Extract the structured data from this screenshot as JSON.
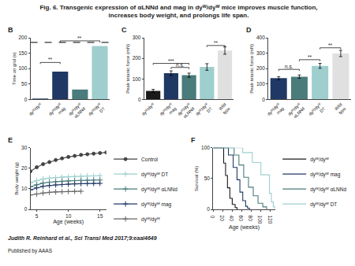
{
  "title": "Fig. 6. Transgenic expression of αLNNd and mag in dyᵂ/dyᵂ mice improves muscle function,\nincreases body weight, and prolongs life span.",
  "annotations": [
    "Judith R. Reinhard et al., Sci Transl Med 2017;9:eaal4649",
    "Published by AAAS"
  ],
  "chart_data": [
    {
      "type": "bar",
      "panel": "B",
      "categories": [
        "dyᵂ/dyᵂ",
        "dyᵂ/dyᵂ\nmag",
        "dyᵂ/dyᵂ\nαLNNd",
        "dyᵂ/dyᵂ\nDT"
      ],
      "values": [
        3,
        90,
        32,
        173
      ],
      "colors": [
        "#203864",
        "#203864",
        "#4a7c7c",
        "#9ecece"
      ],
      "ylabel": "Time on grid (s)",
      "ylim": [
        0,
        200
      ],
      "yticks": [
        0,
        50,
        100,
        150,
        200
      ],
      "grid": false,
      "reference_line": 185,
      "brackets": [
        {
          "x1": 0,
          "x2": 1,
          "y": 115,
          "label": "**"
        },
        {
          "x1": 1,
          "x2": 3,
          "y": 185,
          "label": "**"
        }
      ]
    },
    {
      "type": "bar",
      "panel": "C",
      "categories": [
        "dyᵂ/dyᵂ",
        "dyᵂ/dyᵂ\nmag",
        "dyᵂ/dyᵂ\nαLNNd",
        "dyᵂ/dyᵂ\nDT",
        "Wild\ntype"
      ],
      "values": [
        42,
        128,
        118,
        158,
        238
      ],
      "errors": [
        7,
        11,
        10,
        16,
        18
      ],
      "colors": [
        "#1a1a1a",
        "#203864",
        "#4a7c7c",
        "#9ecece",
        "#e0e0e0"
      ],
      "ylabel": "Peak tetanic force (mN)",
      "ylim": [
        0,
        300
      ],
      "yticks": [
        0,
        100,
        200,
        300
      ],
      "grid": false,
      "brackets": [
        {
          "x1": 0,
          "x2": 2,
          "y": 168,
          "label": "***"
        },
        {
          "x1": 1,
          "x2": 2,
          "y": 148,
          "label": "n.s."
        },
        {
          "x1": 3,
          "x2": 4,
          "y": 255,
          "label": "**"
        }
      ]
    },
    {
      "type": "bar",
      "panel": "D",
      "categories": [
        "dyᵂ/dyᵂ\nmag",
        "dyᵂ/dyᵂ\nαLNNd",
        "dyᵂ/dyᵂ\nDT",
        "Wild\ntype"
      ],
      "values": [
        138,
        148,
        218,
        298
      ],
      "errors": [
        10,
        11,
        16,
        20
      ],
      "colors": [
        "#203864",
        "#4a7c7c",
        "#9ecece",
        "#e0e0e0"
      ],
      "ylabel": "Peak tetanic force (mN)",
      "ylim": [
        0,
        400
      ],
      "yticks": [
        0,
        100,
        200,
        300,
        400
      ],
      "grid": false,
      "brackets": [
        {
          "x1": 0,
          "x2": 1,
          "y": 185,
          "label": "n.s."
        },
        {
          "x1": 1,
          "x2": 2,
          "y": 248,
          "label": "**"
        },
        {
          "x1": 2,
          "x2": 3,
          "y": 325,
          "label": "**"
        }
      ]
    },
    {
      "type": "line",
      "panel": "E",
      "xlabel": "Age (weeks)",
      "ylabel": "Body weight (g)",
      "xlim": [
        4,
        16
      ],
      "ylim": [
        0,
        30
      ],
      "xticks": [
        5,
        10,
        15
      ],
      "yticks": [
        0,
        10,
        20,
        30
      ],
      "grid": false,
      "legend": "right",
      "series": [
        {
          "name": "Control",
          "color": "#444444",
          "marker": "circle",
          "line_style": "solid",
          "x": [
            4,
            5,
            6,
            7,
            8,
            9,
            10,
            11,
            12,
            13,
            14,
            15,
            16
          ],
          "values": [
            18.5,
            20.5,
            22,
            23,
            24,
            24.8,
            25.5,
            26,
            26.5,
            26.8,
            27.1,
            27.4,
            27.7
          ]
        },
        {
          "name": "dyᵂ/dyᵂ DT",
          "color": "#9ecece",
          "marker": "plus",
          "line_style": "solid",
          "x": [
            4,
            5,
            6,
            7,
            8,
            9,
            10,
            11,
            12,
            13,
            14,
            15
          ],
          "values": [
            13,
            14,
            14.8,
            15.2,
            15.5,
            15.7,
            15.85,
            16,
            16.1,
            16.2,
            16.3,
            16.4
          ]
        },
        {
          "name": "dyᵂ/dyᵂ αLNNd",
          "color": "#4a7c7c",
          "marker": "plus",
          "line_style": "solid",
          "x": [
            4,
            5,
            6,
            7,
            8,
            9,
            10,
            11,
            12,
            13,
            14,
            15
          ],
          "values": [
            11,
            12,
            12.8,
            13.2,
            13.5,
            13.7,
            13.85,
            14,
            14.1,
            14.2,
            14.3,
            14.3
          ]
        },
        {
          "name": "dyᵂ/dyᵂ mag",
          "color": "#203864",
          "marker": "plus",
          "line_style": "solid",
          "x": [
            4,
            5,
            6,
            7,
            8,
            9,
            10,
            11,
            12,
            13,
            14,
            15
          ],
          "values": [
            9.5,
            10.5,
            11.2,
            11.6,
            11.9,
            12.1,
            12.25,
            12.4,
            12.5,
            12.55,
            12.6,
            12.65
          ]
        },
        {
          "name": "dyᵂ/dyᵂ",
          "color": "#666666",
          "marker": "plus",
          "line_style": "solid",
          "x": [
            4,
            5,
            6,
            7,
            8,
            9,
            10,
            11,
            12
          ],
          "values": [
            7,
            7.5,
            8,
            8.3,
            8.5,
            8.6,
            8.7,
            8.75,
            8.8
          ]
        }
      ]
    },
    {
      "type": "step",
      "panel": "F",
      "xlabel": "Age (weeks)",
      "ylabel": "Survival (%)",
      "xlim": [
        0,
        130
      ],
      "ylim": [
        0,
        100
      ],
      "xticks": [
        0,
        20,
        40,
        60,
        80,
        100,
        120
      ],
      "yticks": [
        0,
        50,
        100
      ],
      "grid": false,
      "legend": "right",
      "series": [
        {
          "name": "dyᵂ/dyᵂ",
          "color": "#1a1a1a",
          "line_style": "solid",
          "x": [
            0,
            18,
            22,
            26,
            30,
            35,
            40,
            46,
            50
          ],
          "values": [
            100,
            100,
            75,
            55,
            35,
            18,
            8,
            3,
            0
          ]
        },
        {
          "name": "dyᵂ/dyᵂ mag",
          "color": "#203864",
          "line_style": "solid",
          "x": [
            0,
            22,
            32,
            42,
            50,
            56,
            62,
            68,
            72,
            76
          ],
          "values": [
            100,
            100,
            88,
            68,
            48,
            28,
            14,
            5,
            2,
            0
          ]
        },
        {
          "name": "dyᵂ/dyᵂ αLNNd",
          "color": "#4a7c7c",
          "line_style": "solid",
          "x": [
            0,
            32,
            44,
            54,
            64,
            74,
            84,
            94,
            104,
            112
          ],
          "values": [
            100,
            100,
            88,
            72,
            52,
            36,
            22,
            10,
            4,
            0
          ]
        },
        {
          "name": "dyᵂ/dyᵂ DT",
          "color": "#9ecece",
          "line_style": "solid",
          "x": [
            0,
            42,
            62,
            82,
            100,
            118,
            122,
            126,
            130
          ],
          "values": [
            100,
            100,
            92,
            76,
            56,
            26,
            12,
            4,
            0
          ]
        }
      ]
    }
  ]
}
